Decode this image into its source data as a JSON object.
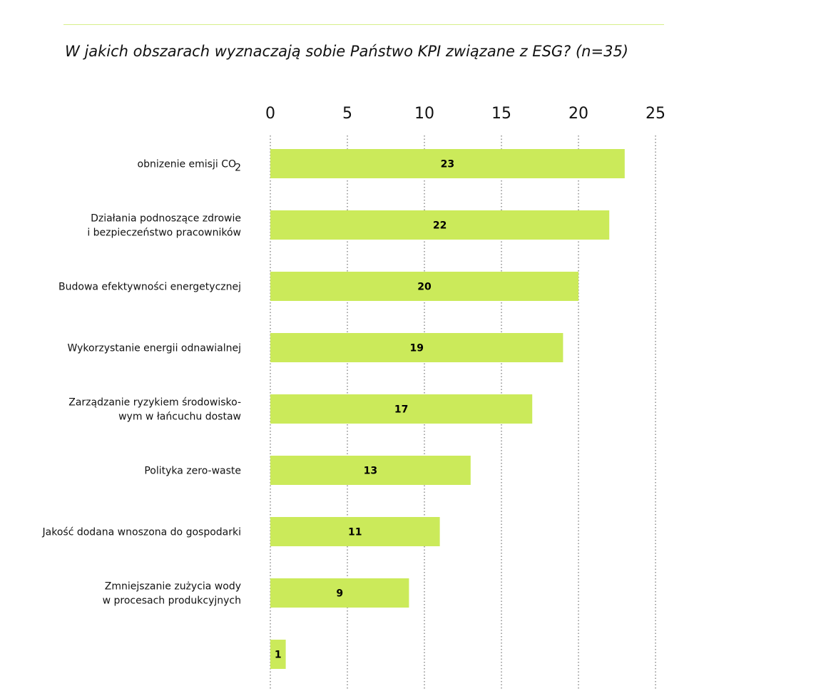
{
  "accent_color": "#cbea5a",
  "chart_data": {
    "type": "bar",
    "orientation": "horizontal",
    "title": "W jakich obszarach wyznaczają sobie Państwo KPI związane z ESG? (n=35)",
    "xlabel": "",
    "ylabel": "",
    "xlim": [
      0,
      25
    ],
    "x_ticks": [
      "0",
      "5",
      "10",
      "15",
      "20",
      "25"
    ],
    "x_axis_position": "top",
    "grid": "vertical dotted",
    "legend": "none",
    "bar_color": "#cbea5a",
    "categories": [
      {
        "lines": [
          "obnizenie emisji CO"
        ],
        "subscript": "2"
      },
      {
        "lines": [
          "Działania podnoszące zdrowie",
          "i bezpieczeństwo pracowników"
        ]
      },
      {
        "lines": [
          "Budowa efektywności energetycznej"
        ]
      },
      {
        "lines": [
          "Wykorzystanie energii odnawialnej"
        ]
      },
      {
        "lines": [
          "Zarządzanie ryzykiem środowisko-",
          "wym w łańcuchu dostaw"
        ]
      },
      {
        "lines": [
          "Polityka zero-waste"
        ]
      },
      {
        "lines": [
          "Jakość dodana wnoszona do gospodarki"
        ]
      },
      {
        "lines": [
          "Zmniejszanie zużycia wody",
          "w procesach produkcyjnych"
        ]
      },
      {
        "lines": []
      }
    ],
    "values": [
      23,
      22,
      20,
      19,
      17,
      13,
      11,
      9,
      1
    ],
    "data_labels": [
      "23",
      "22",
      "20",
      "19",
      "17",
      "13",
      "11",
      "9",
      "1"
    ]
  }
}
